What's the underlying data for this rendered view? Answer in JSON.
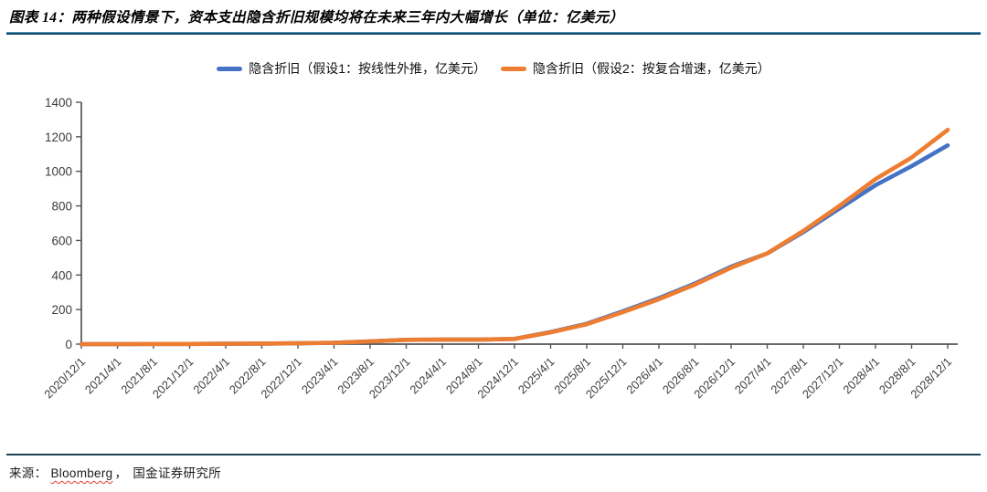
{
  "title": "图表 14：两种假设情景下，资本支出隐含折旧规模均将在未来三年内大幅增长（单位：亿美元）",
  "source": {
    "prefix": "来源：",
    "vendor": "Bloomberg",
    "separator": "，",
    "institution": "国金证券研究所"
  },
  "colors": {
    "assumption1_blue": "#4472C4",
    "assumption2_orange": "#ED7D31",
    "axis": "#555555",
    "tick_label": "#3d3d3d",
    "title_rule_light": "#5590b5",
    "title_rule_dark": "#134d6b",
    "source_rule": "#1d4356",
    "spellcheck_wavy": "#e03c31"
  },
  "chart_data": {
    "type": "line",
    "title": "",
    "xlabel": "",
    "ylabel": "",
    "unit_note": "亿美元",
    "grid": false,
    "legend_position": "top-center",
    "ylim": [
      0,
      1400
    ],
    "yticks": [
      0,
      200,
      400,
      600,
      800,
      1000,
      1200,
      1400
    ],
    "categories": [
      "2020/12/1",
      "2021/4/1",
      "2021/8/1",
      "2021/12/1",
      "2022/4/1",
      "2022/8/1",
      "2022/12/1",
      "2023/4/1",
      "2023/8/1",
      "2023/12/1",
      "2024/4/1",
      "2024/8/1",
      "2024/12/1",
      "2025/4/1",
      "2025/8/1",
      "2025/12/1",
      "2026/4/1",
      "2026/8/1",
      "2026/12/1",
      "2027/4/1",
      "2027/8/1",
      "2027/12/1",
      "2028/4/1",
      "2028/8/1",
      "2028/12/1"
    ],
    "series": [
      {
        "name": "隐含折旧（假设1：按线性外推，亿美元）",
        "color": "#4472C4",
        "values": [
          0,
          0,
          1,
          1,
          2,
          3,
          5,
          8,
          16,
          25,
          26,
          26,
          30,
          70,
          118,
          190,
          266,
          351,
          448,
          525,
          648,
          785,
          920,
          1030,
          1150
        ]
      },
      {
        "name": "隐含折旧（假设2：按复合增速，亿美元）",
        "color": "#ED7D31",
        "values": [
          0,
          0,
          1,
          1,
          2,
          3,
          5,
          8,
          16,
          25,
          26,
          26,
          30,
          68,
          115,
          185,
          260,
          345,
          442,
          525,
          655,
          800,
          955,
          1080,
          1240
        ]
      }
    ]
  }
}
